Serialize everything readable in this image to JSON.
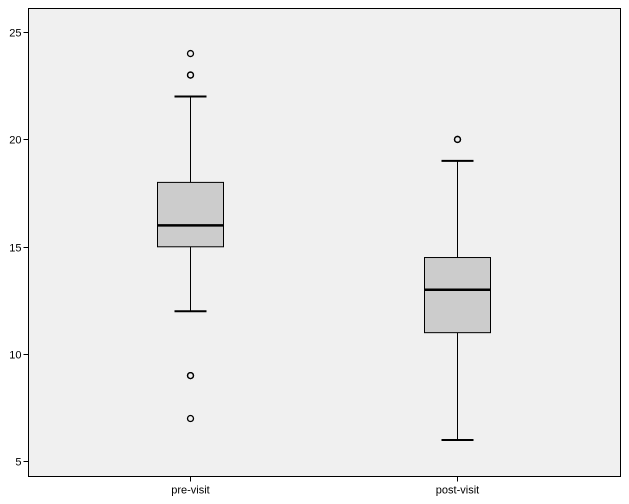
{
  "chart_data": {
    "type": "boxplot",
    "categories": [
      "pre-visit",
      "post-visit"
    ],
    "boxes": [
      {
        "category": "pre-visit",
        "whisker_low": 12,
        "q1": 15,
        "median": 16,
        "q3": 18,
        "whisker_high": 22,
        "outliers": [
          24,
          23,
          23,
          9,
          9,
          7
        ]
      },
      {
        "category": "post-visit",
        "whisker_low": 6,
        "q1": 11,
        "median": 13,
        "q3": 14.5,
        "whisker_high": 19,
        "outliers": [
          20,
          20
        ]
      }
    ],
    "y_ticks": [
      5,
      10,
      15,
      20,
      25
    ],
    "ylim": [
      4.3,
      26.1
    ],
    "title": "",
    "xlabel": "",
    "ylabel": "",
    "grid": false,
    "colors": {
      "plot_background": "#f0f0f0",
      "box_fill": "#cccccc",
      "stroke": "#000000"
    }
  }
}
